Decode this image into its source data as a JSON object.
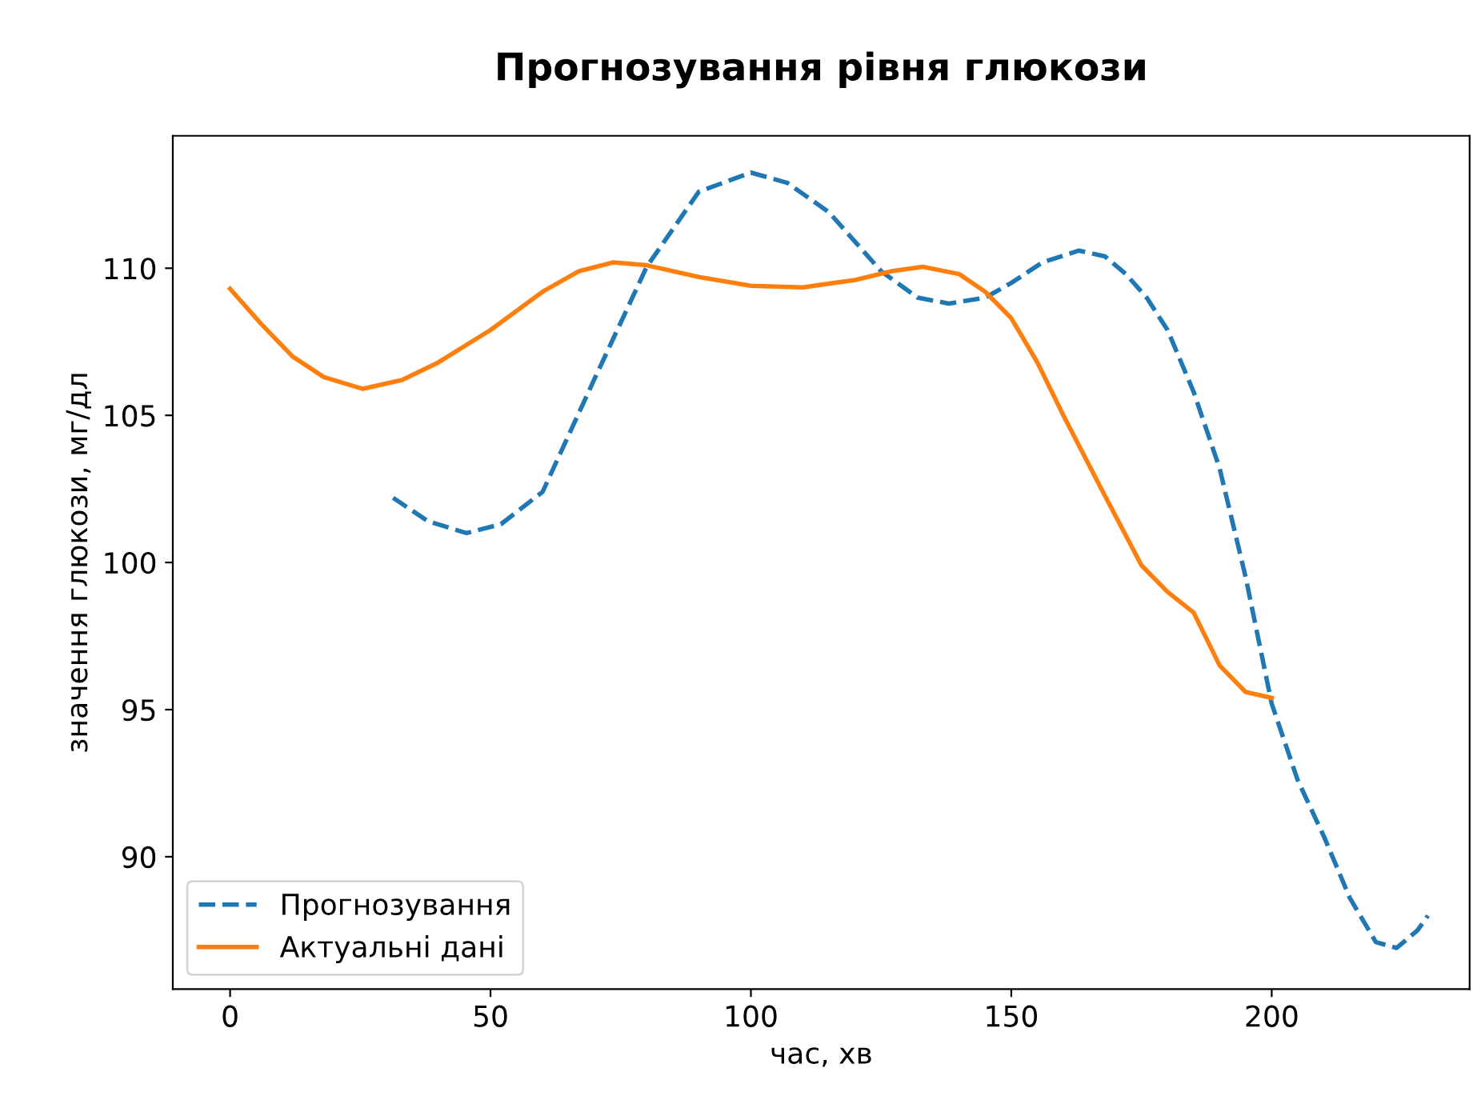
{
  "chart_data": {
    "type": "line",
    "title": "Прогнозування рівня глюкози",
    "xlabel": "час, хв",
    "ylabel": "значення глюкози, мг/дл",
    "series": [
      {
        "name": "Прогнозування",
        "color": "#1f77b4",
        "line_style": "dashed",
        "x": [
          31.3,
          38,
          45.4,
          52,
          60,
          70,
          80,
          90,
          100,
          107,
          115,
          125,
          132,
          138,
          145,
          150,
          156,
          163,
          168,
          172,
          176,
          180,
          185,
          190,
          195,
          200,
          205,
          210,
          215,
          220,
          224,
          228,
          230
        ],
        "values": [
          102.2,
          101.4,
          101.0,
          101.3,
          102.4,
          106.25,
          110.05,
          112.6,
          113.25,
          112.9,
          111.9,
          109.9,
          109.0,
          108.8,
          109.0,
          109.5,
          110.2,
          110.6,
          110.4,
          109.8,
          109.0,
          107.9,
          105.8,
          103.2,
          99.5,
          95.2,
          92.6,
          90.7,
          88.6,
          87.1,
          86.9,
          87.5,
          88.0
        ]
      },
      {
        "name": "Актуальні дані",
        "color": "#ff7f0e",
        "line_style": "solid",
        "x": [
          0,
          6,
          12,
          18,
          25.5,
          33,
          40,
          50,
          60,
          67,
          73.6,
          80,
          90,
          100,
          110,
          120,
          127,
          133,
          140,
          145,
          150,
          155,
          160,
          167,
          175,
          180,
          185,
          190,
          195,
          200
        ],
        "values": [
          109.3,
          108.1,
          107.0,
          106.3,
          105.9,
          106.2,
          106.8,
          107.9,
          109.2,
          109.9,
          110.2,
          110.1,
          109.7,
          109.4,
          109.35,
          109.6,
          109.9,
          110.05,
          109.8,
          109.2,
          108.3,
          106.8,
          105.0,
          102.6,
          99.9,
          99.0,
          98.3,
          96.5,
          95.6,
          95.4
        ]
      }
    ],
    "xlim": [
      -11,
      238
    ],
    "ylim": [
      85.5,
      114.5
    ],
    "xticks": [
      0,
      50,
      100,
      150,
      200
    ],
    "yticks": [
      90,
      95,
      100,
      105,
      110
    ],
    "legend": "bottom left",
    "grid": false,
    "marker": "none"
  }
}
